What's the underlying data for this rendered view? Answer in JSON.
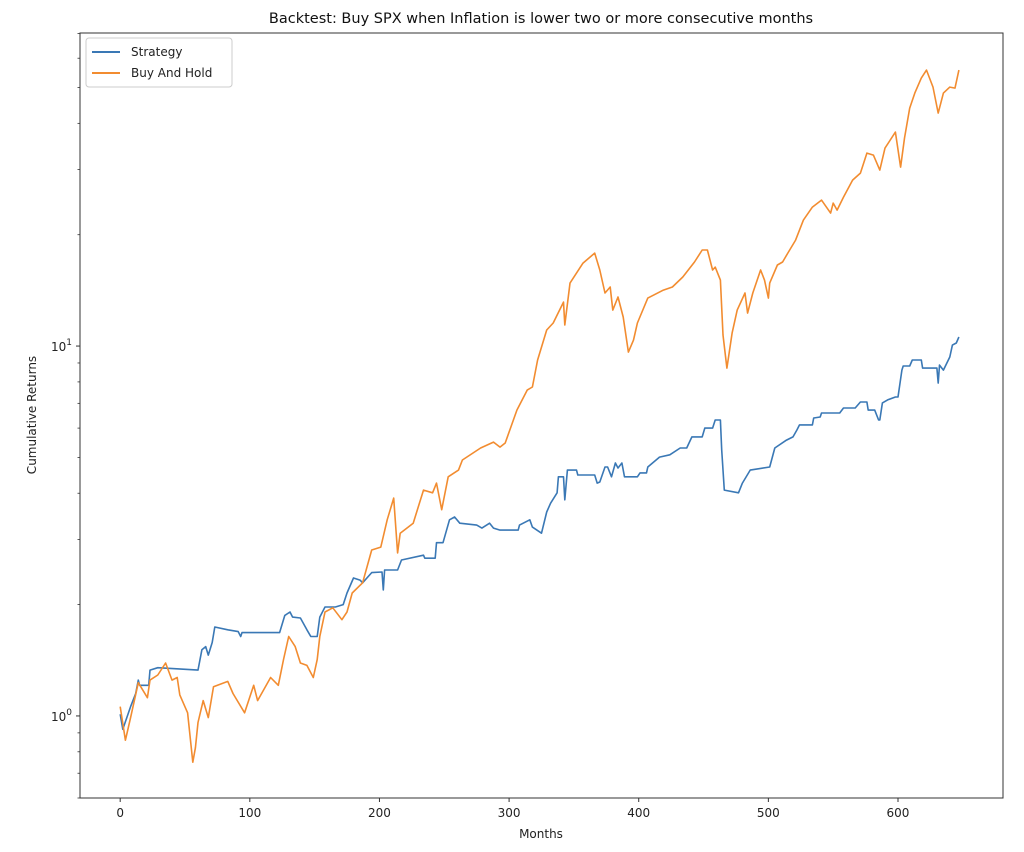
{
  "chart_data": {
    "type": "line",
    "title": "Backtest: Buy SPX when Inflation is lower two or more consecutive months",
    "xlabel": "Months",
    "ylabel": "Cumulative Returns",
    "xlim": [
      -31,
      681
    ],
    "ylim": [
      0.6,
      70.2
    ],
    "yscale": "log",
    "grid": false,
    "legend_position": "top-left",
    "x_ticks": [
      0,
      100,
      200,
      300,
      400,
      500,
      600
    ],
    "x_tick_labels": [
      "0",
      "100",
      "200",
      "300",
      "400",
      "500",
      "600"
    ],
    "y_ticks": [
      1,
      10
    ],
    "y_tick_labels": [
      {
        "base": "10",
        "exp": "0"
      },
      {
        "base": "10",
        "exp": "1"
      }
    ],
    "series": [
      {
        "name": "Strategy",
        "color": "#3a78b5",
        "points": [
          [
            0,
            1.01
          ],
          [
            2,
            0.92
          ],
          [
            8,
            1.06
          ],
          [
            12,
            1.15
          ],
          [
            14,
            1.25
          ],
          [
            15,
            1.21
          ],
          [
            22,
            1.21
          ],
          [
            23,
            1.33
          ],
          [
            29,
            1.35
          ],
          [
            60,
            1.33
          ],
          [
            63,
            1.51
          ],
          [
            66,
            1.54
          ],
          [
            68,
            1.46
          ],
          [
            71,
            1.58
          ],
          [
            73,
            1.74
          ],
          [
            83,
            1.71
          ],
          [
            91,
            1.69
          ],
          [
            93,
            1.64
          ],
          [
            94,
            1.68
          ],
          [
            123,
            1.68
          ],
          [
            127,
            1.87
          ],
          [
            131,
            1.91
          ],
          [
            133,
            1.85
          ],
          [
            139,
            1.84
          ],
          [
            144,
            1.71
          ],
          [
            147,
            1.64
          ],
          [
            152,
            1.64
          ],
          [
            154,
            1.85
          ],
          [
            158,
            1.97
          ],
          [
            166,
            1.97
          ],
          [
            172,
            2.0
          ],
          [
            175,
            2.15
          ],
          [
            180,
            2.36
          ],
          [
            185,
            2.33
          ],
          [
            187,
            2.29
          ],
          [
            194,
            2.44
          ],
          [
            202,
            2.45
          ],
          [
            203,
            2.19
          ],
          [
            204,
            2.48
          ],
          [
            214,
            2.48
          ],
          [
            217,
            2.64
          ],
          [
            234,
            2.72
          ],
          [
            235,
            2.67
          ],
          [
            243,
            2.67
          ],
          [
            244,
            2.94
          ],
          [
            249,
            2.94
          ],
          [
            254,
            3.39
          ],
          [
            258,
            3.45
          ],
          [
            262,
            3.32
          ],
          [
            275,
            3.28
          ],
          [
            279,
            3.22
          ],
          [
            285,
            3.32
          ],
          [
            288,
            3.22
          ],
          [
            293,
            3.18
          ],
          [
            307,
            3.18
          ],
          [
            308,
            3.28
          ],
          [
            316,
            3.39
          ],
          [
            318,
            3.24
          ],
          [
            325,
            3.12
          ],
          [
            329,
            3.56
          ],
          [
            332,
            3.76
          ],
          [
            337,
            4.01
          ],
          [
            338,
            4.43
          ],
          [
            342,
            4.43
          ],
          [
            343,
            3.84
          ],
          [
            345,
            4.62
          ],
          [
            352,
            4.62
          ],
          [
            353,
            4.48
          ],
          [
            366,
            4.48
          ],
          [
            368,
            4.26
          ],
          [
            370,
            4.29
          ],
          [
            374,
            4.71
          ],
          [
            376,
            4.71
          ],
          [
            379,
            4.43
          ],
          [
            382,
            4.83
          ],
          [
            384,
            4.68
          ],
          [
            387,
            4.83
          ],
          [
            389,
            4.43
          ],
          [
            399,
            4.43
          ],
          [
            401,
            4.54
          ],
          [
            406,
            4.54
          ],
          [
            407,
            4.71
          ],
          [
            416,
            5.01
          ],
          [
            424,
            5.08
          ],
          [
            432,
            5.3
          ],
          [
            437,
            5.3
          ],
          [
            441,
            5.68
          ],
          [
            449,
            5.68
          ],
          [
            451,
            6.0
          ],
          [
            457,
            6.0
          ],
          [
            459,
            6.31
          ],
          [
            463,
            6.31
          ],
          [
            464,
            5.24
          ],
          [
            466,
            4.08
          ],
          [
            477,
            4.01
          ],
          [
            480,
            4.26
          ],
          [
            486,
            4.62
          ],
          [
            501,
            4.71
          ],
          [
            505,
            5.3
          ],
          [
            514,
            5.57
          ],
          [
            519,
            5.68
          ],
          [
            522,
            5.93
          ],
          [
            524,
            6.12
          ],
          [
            534,
            6.12
          ],
          [
            535,
            6.39
          ],
          [
            540,
            6.43
          ],
          [
            541,
            6.59
          ],
          [
            555,
            6.59
          ],
          [
            558,
            6.8
          ],
          [
            567,
            6.8
          ],
          [
            571,
            7.06
          ],
          [
            576,
            7.06
          ],
          [
            577,
            6.71
          ],
          [
            582,
            6.71
          ],
          [
            585,
            6.31
          ],
          [
            586,
            6.31
          ],
          [
            588,
            7.02
          ],
          [
            592,
            7.15
          ],
          [
            598,
            7.28
          ],
          [
            600,
            7.28
          ],
          [
            603,
            8.61
          ],
          [
            604,
            8.83
          ],
          [
            609,
            8.83
          ],
          [
            611,
            9.17
          ],
          [
            618,
            9.17
          ],
          [
            619,
            8.72
          ],
          [
            630,
            8.72
          ],
          [
            631,
            7.94
          ],
          [
            632,
            8.88
          ],
          [
            635,
            8.61
          ],
          [
            638,
            9.05
          ],
          [
            640,
            9.34
          ],
          [
            642,
            10.06
          ],
          [
            645,
            10.19
          ],
          [
            647,
            10.58
          ]
        ]
      },
      {
        "name": "Buy And Hold",
        "color": "#f28c30",
        "points": [
          [
            0,
            1.06
          ],
          [
            4,
            0.86
          ],
          [
            8,
            0.99
          ],
          [
            14,
            1.23
          ],
          [
            21,
            1.12
          ],
          [
            23,
            1.25
          ],
          [
            29,
            1.29
          ],
          [
            35,
            1.39
          ],
          [
            40,
            1.25
          ],
          [
            44,
            1.27
          ],
          [
            46,
            1.14
          ],
          [
            52,
            1.02
          ],
          [
            56,
            0.75
          ],
          [
            58,
            0.82
          ],
          [
            60,
            0.96
          ],
          [
            64,
            1.1
          ],
          [
            68,
            0.99
          ],
          [
            72,
            1.2
          ],
          [
            83,
            1.24
          ],
          [
            87,
            1.15
          ],
          [
            96,
            1.02
          ],
          [
            103,
            1.21
          ],
          [
            106,
            1.1
          ],
          [
            116,
            1.27
          ],
          [
            122,
            1.21
          ],
          [
            126,
            1.42
          ],
          [
            130,
            1.64
          ],
          [
            135,
            1.54
          ],
          [
            139,
            1.39
          ],
          [
            144,
            1.37
          ],
          [
            149,
            1.27
          ],
          [
            152,
            1.42
          ],
          [
            154,
            1.64
          ],
          [
            158,
            1.91
          ],
          [
            164,
            1.96
          ],
          [
            171,
            1.82
          ],
          [
            175,
            1.91
          ],
          [
            179,
            2.15
          ],
          [
            187,
            2.29
          ],
          [
            194,
            2.81
          ],
          [
            201,
            2.86
          ],
          [
            206,
            3.39
          ],
          [
            211,
            3.88
          ],
          [
            214,
            2.76
          ],
          [
            216,
            3.12
          ],
          [
            226,
            3.32
          ],
          [
            234,
            4.08
          ],
          [
            241,
            4.01
          ],
          [
            244,
            4.26
          ],
          [
            248,
            3.61
          ],
          [
            253,
            4.43
          ],
          [
            261,
            4.62
          ],
          [
            264,
            4.92
          ],
          [
            278,
            5.3
          ],
          [
            288,
            5.5
          ],
          [
            293,
            5.33
          ],
          [
            297,
            5.47
          ],
          [
            306,
            6.71
          ],
          [
            314,
            7.6
          ],
          [
            318,
            7.75
          ],
          [
            322,
            9.17
          ],
          [
            329,
            11.05
          ],
          [
            334,
            11.54
          ],
          [
            342,
            13.15
          ],
          [
            343,
            11.4
          ],
          [
            347,
            14.8
          ],
          [
            352,
            15.75
          ],
          [
            357,
            16.76
          ],
          [
            366,
            17.84
          ],
          [
            370,
            16.05
          ],
          [
            374,
            13.91
          ],
          [
            378,
            14.44
          ],
          [
            380,
            12.51
          ],
          [
            384,
            13.57
          ],
          [
            388,
            11.98
          ],
          [
            392,
            9.63
          ],
          [
            396,
            10.38
          ],
          [
            399,
            11.54
          ],
          [
            407,
            13.48
          ],
          [
            419,
            14.17
          ],
          [
            426,
            14.44
          ],
          [
            434,
            15.37
          ],
          [
            443,
            16.87
          ],
          [
            449,
            18.18
          ],
          [
            453,
            18.18
          ],
          [
            457,
            16.05
          ],
          [
            459,
            16.35
          ],
          [
            463,
            15.08
          ],
          [
            465,
            10.71
          ],
          [
            468,
            8.72
          ],
          [
            472,
            10.84
          ],
          [
            476,
            12.51
          ],
          [
            482,
            13.91
          ],
          [
            484,
            12.28
          ],
          [
            488,
            13.91
          ],
          [
            494,
            16.05
          ],
          [
            497,
            15.08
          ],
          [
            500,
            13.48
          ],
          [
            501,
            14.8
          ],
          [
            507,
            16.56
          ],
          [
            511,
            16.87
          ],
          [
            515,
            17.84
          ],
          [
            521,
            19.34
          ],
          [
            527,
            21.9
          ],
          [
            534,
            23.75
          ],
          [
            541,
            24.8
          ],
          [
            548,
            22.88
          ],
          [
            550,
            24.35
          ],
          [
            553,
            23.31
          ],
          [
            558,
            25.27
          ],
          [
            565,
            28.1
          ],
          [
            571,
            29.35
          ],
          [
            576,
            33.23
          ],
          [
            581,
            32.82
          ],
          [
            586,
            29.91
          ],
          [
            590,
            34.28
          ],
          [
            598,
            37.88
          ],
          [
            602,
            30.47
          ],
          [
            605,
            36.5
          ],
          [
            609,
            43.98
          ],
          [
            613,
            48.29
          ],
          [
            618,
            53.0
          ],
          [
            622,
            55.71
          ],
          [
            627,
            50.12
          ],
          [
            631,
            42.63
          ],
          [
            635,
            48.29
          ],
          [
            640,
            50.12
          ],
          [
            644,
            49.81
          ],
          [
            647,
            55.71
          ]
        ]
      }
    ]
  }
}
